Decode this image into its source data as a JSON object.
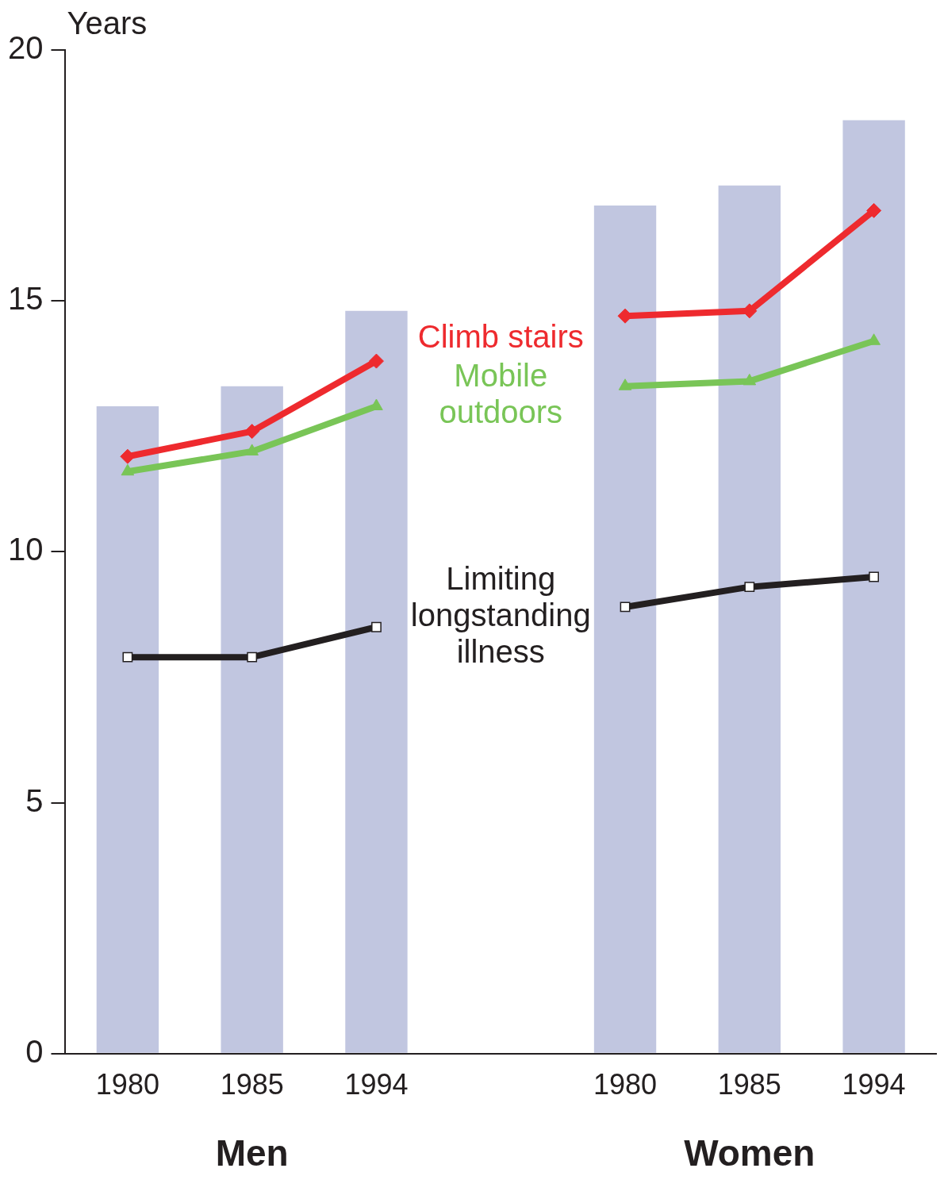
{
  "chart_data": {
    "type": "bar",
    "ylabel": "Years",
    "categories": [
      "1980",
      "1985",
      "1994",
      null,
      "1980",
      "1985",
      "1994"
    ],
    "series": [
      {
        "color": "#c1c6e0",
        "values": [
          12.9,
          13.3,
          14.8,
          null,
          16.9,
          17.3,
          18.6
        ]
      },
      {
        "type": "line",
        "name": "Climb stairs",
        "color": "#ee2a2e",
        "marker": "diamond",
        "values": [
          11.9,
          12.4,
          13.8,
          null,
          14.7,
          14.8,
          16.8
        ]
      },
      {
        "type": "line",
        "name": "Mobile outdoors",
        "color": "#79c557",
        "marker": "triangle",
        "values": [
          11.6,
          12.0,
          12.9,
          null,
          13.3,
          13.4,
          14.2
        ]
      },
      {
        "type": "line",
        "name": "Limiting longstanding illness",
        "color": "#231f20",
        "marker": "square",
        "values": [
          7.9,
          7.9,
          8.5,
          null,
          8.9,
          9.3,
          9.5
        ]
      }
    ],
    "ylim": [
      0,
      20
    ],
    "yticks": [
      0,
      5,
      10,
      15,
      20
    ],
    "grid": false,
    "legend": false,
    "annotations": [
      "Men",
      "Women"
    ]
  }
}
